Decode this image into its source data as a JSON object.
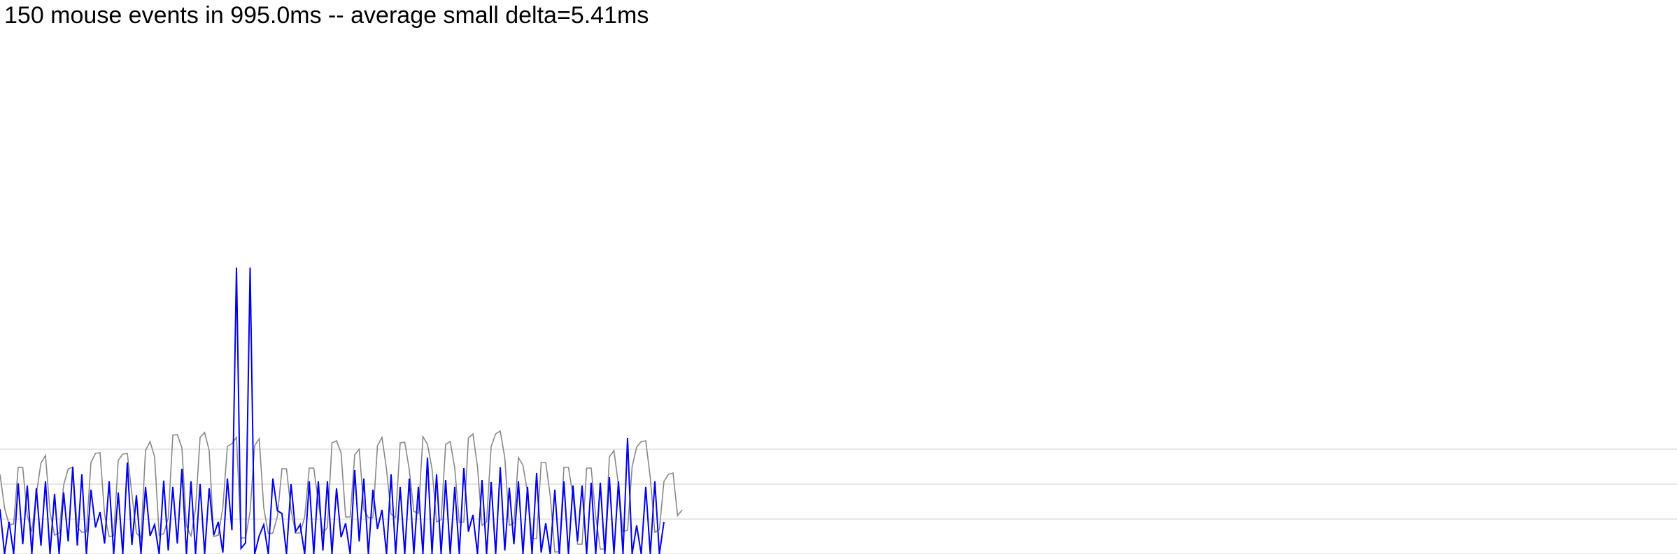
{
  "status": {
    "text": "150 mouse events in 995.0ms -- average small delta=5.41ms"
  },
  "chart_data": {
    "type": "line",
    "title": "",
    "xlabel": "",
    "ylabel": "",
    "grid": true,
    "ylim": [
      0,
      40
    ],
    "grid_values": [
      0,
      5,
      10,
      15
    ],
    "series": [
      {
        "color": "#0000ee",
        "values": [
          6.4,
          0,
          4.6,
          0,
          10.1,
          1.4,
          9.8,
          0,
          9.4,
          1.2,
          10.4,
          0,
          8.6,
          0,
          8.8,
          1.8,
          12.5,
          1.2,
          11.4,
          0,
          9.2,
          3.8,
          6,
          1.5,
          10.4,
          0,
          8.8,
          0,
          13.1,
          1.3,
          8.4,
          0,
          9.6,
          2.6,
          4.2,
          0,
          10.5,
          0.5,
          9.6,
          1.5,
          12.2,
          0,
          10.4,
          0,
          10,
          0,
          9.4,
          2.7,
          4.6,
          0.2,
          10.8,
          3.4,
          41,
          0.8,
          1.6,
          41,
          0,
          2.6,
          4.2,
          0,
          10.8,
          6.2,
          5.8,
          0,
          10,
          3.2,
          4.2,
          0,
          10.4,
          0,
          10.4,
          0.5,
          10.4,
          0,
          9.4,
          2.4,
          4.4,
          0,
          12,
          1.8,
          10.8,
          0,
          9.2,
          3.6,
          6.3,
          0,
          11.4,
          0,
          9.6,
          0,
          10.8,
          0,
          9.6,
          0,
          13.8,
          0,
          11.4,
          0,
          10.6,
          0,
          9.6,
          0,
          12.3,
          3.2,
          5.6,
          0,
          10.6,
          0,
          10.3,
          0,
          12.4,
          0.5,
          9.5,
          1.4,
          10.4,
          0,
          9.6,
          0,
          11.6,
          0.2,
          4.4,
          0,
          9.2,
          0,
          10.4,
          0,
          9.8,
          1.8,
          9.8,
          0,
          10.2,
          0,
          10.2,
          0,
          11,
          0,
          10.4,
          0,
          16.6,
          0,
          4.1,
          0,
          9.6,
          0,
          10.4,
          0,
          4.6
        ],
        "bold": true
      },
      {
        "color": "#888888",
        "values": [
          11.4,
          6.6,
          4.2,
          4.3,
          12.4,
          12.4,
          5.5,
          3.2,
          8.6,
          13,
          14.1,
          6,
          2.7,
          3,
          9.9,
          12.2,
          12.4,
          3.9,
          3.1,
          3.2,
          13.1,
          14.4,
          14.5,
          5.6,
          2.5,
          2.6,
          13.4,
          14.3,
          14.4,
          8.6,
          3,
          2.3,
          14.8,
          16.1,
          13.9,
          2.7,
          2.9,
          5.2,
          17,
          17.1,
          15.2,
          4,
          2.6,
          6.4,
          16.7,
          17.4,
          14.8,
          2.5,
          2.7,
          6.6,
          15.4,
          15.8,
          16.7,
          2.3,
          2.3,
          6.1,
          15.5,
          16.5,
          6.6,
          2.9,
          3,
          5.4,
          12.2,
          12.2,
          6.3,
          3,
          3,
          5.3,
          12.3,
          12.3,
          7.4,
          3,
          3.8,
          15.9,
          16.2,
          14.5,
          5.3,
          5.3,
          14.2,
          15,
          6.4,
          5.2,
          5.2,
          15.5,
          16.7,
          12.1,
          5.7,
          5.2,
          15.9,
          16,
          12.1,
          6.1,
          5.8,
          16.8,
          15.7,
          12.2,
          4.6,
          4.9,
          15.7,
          16.1,
          12.3,
          4.5,
          4.6,
          16.6,
          17.2,
          12.5,
          4.1,
          4.6,
          15.4,
          17.2,
          17.6,
          13.8,
          4.1,
          4.4,
          13.8,
          12.7,
          8.8,
          2.2,
          2.2,
          13.1,
          13.1,
          8.3,
          0.3,
          0.3,
          12.4,
          12.4,
          8.3,
          1.4,
          1.4,
          12.3,
          12.3,
          5.4,
          0.7,
          0.7,
          13.9,
          14.8,
          9.9,
          3.2,
          3.4,
          12.5,
          15.3,
          16.1,
          16.2,
          10.9,
          3.1,
          3.5,
          10.4,
          11.4,
          11.6,
          5.5,
          6.3
        ],
        "bold": false
      }
    ]
  }
}
